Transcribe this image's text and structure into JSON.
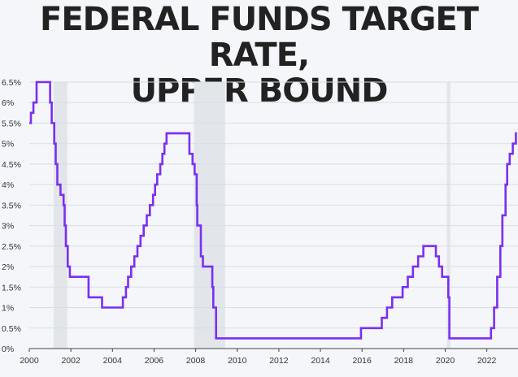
{
  "title_lines": [
    "FEDERAL FUNDS TARGET RATE,",
    "UPPER BOUND"
  ],
  "colors": {
    "line": "#7b2ff2",
    "recession": "#e2e6ea",
    "grid": "#d9dde2",
    "axis": "#444444",
    "text": "#333333"
  },
  "chart_data": {
    "type": "line",
    "title": "FEDERAL FUNDS TARGET RATE, UPPER BOUND",
    "xlabel": "",
    "ylabel": "",
    "xlim": [
      2000,
      2023.5
    ],
    "ylim": [
      0,
      6.5
    ],
    "x_ticks": [
      2000,
      2002,
      2004,
      2006,
      2008,
      2010,
      2012,
      2014,
      2016,
      2018,
      2020,
      2022
    ],
    "x_tick_labels": [
      "2000",
      "2002",
      "2004",
      "2006",
      "2008",
      "2010",
      "2012",
      "2014",
      "2016",
      "2018",
      "2020",
      "2022"
    ],
    "y_ticks": [
      0,
      0.5,
      1,
      1.5,
      2,
      2.5,
      3,
      3.5,
      4,
      4.5,
      5,
      5.5,
      6,
      6.5
    ],
    "y_tick_labels": [
      "0%",
      "0.5%",
      "1%",
      "1.5%",
      "2%",
      "2.5%",
      "3%",
      "3.5%",
      "4%",
      "4.5%",
      "5%",
      "5.5%",
      "6%",
      "6.5%"
    ],
    "grid": "horizontal",
    "legend": "none",
    "recession_bands": [
      [
        2001.17,
        2001.83
      ],
      [
        2007.92,
        2009.42
      ],
      [
        2020.08,
        2020.25
      ]
    ],
    "series": [
      {
        "step": true,
        "points": [
          [
            2000.0,
            5.5
          ],
          [
            2000.08,
            5.75
          ],
          [
            2000.2,
            6.0
          ],
          [
            2000.35,
            6.5
          ],
          [
            2001.0,
            6.0
          ],
          [
            2001.08,
            5.5
          ],
          [
            2001.2,
            5.0
          ],
          [
            2001.27,
            4.5
          ],
          [
            2001.35,
            4.0
          ],
          [
            2001.5,
            3.75
          ],
          [
            2001.65,
            3.5
          ],
          [
            2001.7,
            3.0
          ],
          [
            2001.76,
            2.5
          ],
          [
            2001.85,
            2.0
          ],
          [
            2001.95,
            1.75
          ],
          [
            2002.85,
            1.25
          ],
          [
            2003.5,
            1.0
          ],
          [
            2004.5,
            1.25
          ],
          [
            2004.65,
            1.5
          ],
          [
            2004.75,
            1.75
          ],
          [
            2004.9,
            2.0
          ],
          [
            2005.05,
            2.25
          ],
          [
            2005.2,
            2.5
          ],
          [
            2005.35,
            2.75
          ],
          [
            2005.5,
            3.0
          ],
          [
            2005.65,
            3.25
          ],
          [
            2005.8,
            3.5
          ],
          [
            2005.95,
            3.75
          ],
          [
            2006.05,
            4.0
          ],
          [
            2006.15,
            4.25
          ],
          [
            2006.3,
            4.5
          ],
          [
            2006.4,
            4.75
          ],
          [
            2006.5,
            5.0
          ],
          [
            2006.6,
            5.25
          ],
          [
            2007.7,
            4.75
          ],
          [
            2007.85,
            4.5
          ],
          [
            2007.95,
            4.25
          ],
          [
            2008.05,
            3.5
          ],
          [
            2008.08,
            3.0
          ],
          [
            2008.25,
            2.25
          ],
          [
            2008.35,
            2.0
          ],
          [
            2008.8,
            1.5
          ],
          [
            2008.85,
            1.0
          ],
          [
            2008.98,
            0.25
          ],
          [
            2015.95,
            0.5
          ],
          [
            2016.95,
            0.75
          ],
          [
            2017.2,
            1.0
          ],
          [
            2017.45,
            1.25
          ],
          [
            2017.95,
            1.5
          ],
          [
            2018.2,
            1.75
          ],
          [
            2018.45,
            2.0
          ],
          [
            2018.7,
            2.25
          ],
          [
            2018.95,
            2.5
          ],
          [
            2019.55,
            2.25
          ],
          [
            2019.7,
            2.0
          ],
          [
            2019.85,
            1.75
          ],
          [
            2020.15,
            1.25
          ],
          [
            2020.2,
            0.25
          ],
          [
            2022.2,
            0.5
          ],
          [
            2022.35,
            1.0
          ],
          [
            2022.5,
            1.75
          ],
          [
            2022.65,
            2.5
          ],
          [
            2022.75,
            3.25
          ],
          [
            2022.9,
            4.0
          ],
          [
            2022.98,
            4.5
          ],
          [
            2023.1,
            4.75
          ],
          [
            2023.25,
            5.0
          ],
          [
            2023.4,
            5.25
          ],
          [
            2023.45,
            5.25
          ]
        ]
      }
    ]
  }
}
